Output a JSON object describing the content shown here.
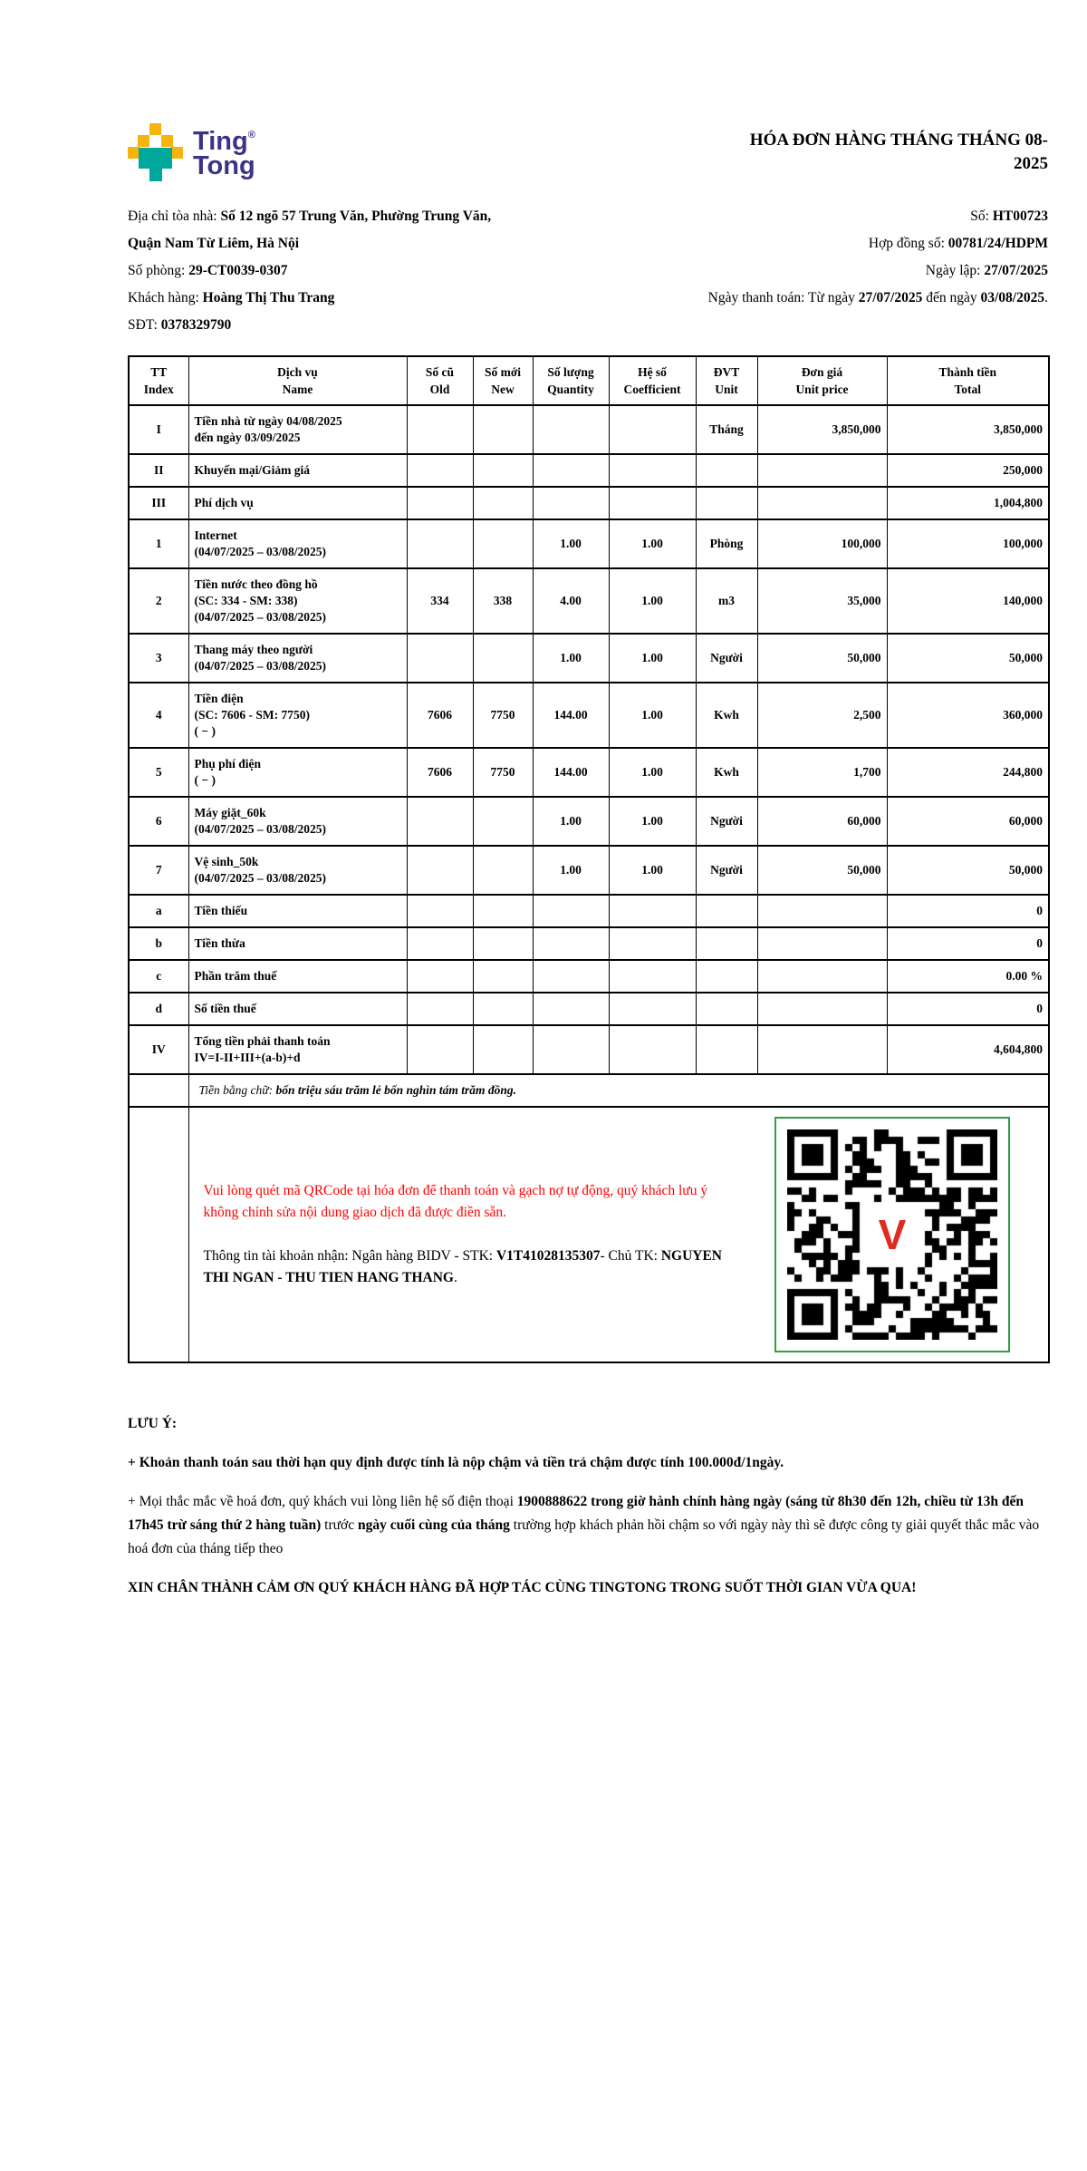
{
  "logo": {
    "line1": "Ting",
    "reg": "®",
    "line2": "Tong"
  },
  "header": {
    "title_l1": "HÓA ĐƠN HÀNG THÁNG THÁNG 08-",
    "title_l2": "2025"
  },
  "info": {
    "lines": [
      {
        "left": [
          {
            "t": "Địa chỉ tòa nhà: "
          },
          {
            "t": "Số 12 ngõ 57 Trung Văn, Phường Trung Văn,",
            "b": 1
          }
        ],
        "right": [
          {
            "t": "Số: "
          },
          {
            "t": "HT00723",
            "b": 1
          }
        ]
      },
      {
        "left": [
          {
            "t": "Quận Nam Từ Liêm, Hà Nội",
            "b": 1
          }
        ],
        "right": [
          {
            "t": "Hợp đồng số: "
          },
          {
            "t": "00781/24/HDPM",
            "b": 1
          }
        ]
      },
      {
        "left": [
          {
            "t": "Số phòng: "
          },
          {
            "t": "29-CT0039-0307",
            "b": 1
          }
        ],
        "right": [
          {
            "t": "Ngày lập: "
          },
          {
            "t": "27/07/2025",
            "b": 1
          }
        ]
      },
      {
        "left": [
          {
            "t": "Khách hàng: "
          },
          {
            "t": "Hoàng Thị Thu Trang",
            "b": 1
          }
        ],
        "right": [
          {
            "t": "Ngày thanh toán: Từ ngày "
          },
          {
            "t": "27/07/2025",
            "b": 1
          },
          {
            "t": " đến ngày "
          },
          {
            "t": "03/08/2025",
            "b": 1
          },
          {
            "t": "."
          }
        ]
      },
      {
        "left": [
          {
            "t": "SĐT: "
          },
          {
            "t": "0378329790",
            "b": 1
          }
        ],
        "right": []
      }
    ]
  },
  "table": {
    "columns": [
      {
        "l1": "TT",
        "l2": "Index"
      },
      {
        "l1": "Dịch vụ",
        "l2": "Name"
      },
      {
        "l1": "Số cũ",
        "l2": "Old"
      },
      {
        "l1": "Số mới",
        "l2": "New"
      },
      {
        "l1": "Số lượng",
        "l2": "Quantity"
      },
      {
        "l1": "Hệ số",
        "l2": "Coefficient"
      },
      {
        "l1": "ĐVT",
        "l2": "Unit"
      },
      {
        "l1": "Đơn giá",
        "l2": "Unit price"
      },
      {
        "l1": "Thành tiền",
        "l2": "Total"
      }
    ],
    "rows": [
      {
        "tt": "I",
        "name": [
          "Tiền nhà từ ngày 04/08/2025",
          "đến ngày 03/09/2025"
        ],
        "old": "",
        "new": "",
        "qty": "",
        "coef": "",
        "unit": "Tháng",
        "price": "3,850,000",
        "total": "3,850,000"
      },
      {
        "tt": "II",
        "name": [
          "Khuyến mại/Giảm giá"
        ],
        "old": "",
        "new": "",
        "qty": "",
        "coef": "",
        "unit": "",
        "price": "",
        "total": "250,000"
      },
      {
        "tt": "III",
        "name": [
          "Phí dịch vụ"
        ],
        "old": "",
        "new": "",
        "qty": "",
        "coef": "",
        "unit": "",
        "price": "",
        "total": "1,004,800"
      },
      {
        "tt": "1",
        "name": [
          "Internet",
          "(04/07/2025 – 03/08/2025)"
        ],
        "old": "",
        "new": "",
        "qty": "1.00",
        "coef": "1.00",
        "unit": "Phòng",
        "price": "100,000",
        "total": "100,000"
      },
      {
        "tt": "2",
        "name": [
          "Tiền nước theo đồng hồ",
          "(SC: 334 - SM: 338)",
          "(04/07/2025 – 03/08/2025)"
        ],
        "old": "334",
        "new": "338",
        "qty": "4.00",
        "coef": "1.00",
        "unit": "m3",
        "price": "35,000",
        "total": "140,000"
      },
      {
        "tt": "3",
        "name": [
          "Thang máy theo người",
          "(04/07/2025 – 03/08/2025)"
        ],
        "old": "",
        "new": "",
        "qty": "1.00",
        "coef": "1.00",
        "unit": "Người",
        "price": "50,000",
        "total": "50,000"
      },
      {
        "tt": "4",
        "name": [
          "Tiền điện",
          "(SC: 7606 - SM: 7750)",
          "( − )"
        ],
        "old": "7606",
        "new": "7750",
        "qty": "144.00",
        "coef": "1.00",
        "unit": "Kwh",
        "price": "2,500",
        "total": "360,000"
      },
      {
        "tt": "5",
        "name": [
          "Phụ phí điện",
          "( − )"
        ],
        "old": "7606",
        "new": "7750",
        "qty": "144.00",
        "coef": "1.00",
        "unit": "Kwh",
        "price": "1,700",
        "total": "244,800"
      },
      {
        "tt": "6",
        "name": [
          "Máy giặt_60k",
          "(04/07/2025 – 03/08/2025)"
        ],
        "old": "",
        "new": "",
        "qty": "1.00",
        "coef": "1.00",
        "unit": "Người",
        "price": "60,000",
        "total": "60,000"
      },
      {
        "tt": "7",
        "name": [
          "Vệ sinh_50k",
          "(04/07/2025 – 03/08/2025)"
        ],
        "old": "",
        "new": "",
        "qty": "1.00",
        "coef": "1.00",
        "unit": "Người",
        "price": "50,000",
        "total": "50,000"
      },
      {
        "tt": "a",
        "name": [
          "Tiền thiếu"
        ],
        "old": "",
        "new": "",
        "qty": "",
        "coef": "",
        "unit": "",
        "price": "",
        "total": "0"
      },
      {
        "tt": "b",
        "name": [
          "Tiền thừa"
        ],
        "old": "",
        "new": "",
        "qty": "",
        "coef": "",
        "unit": "",
        "price": "",
        "total": "0"
      },
      {
        "tt": "c",
        "name": [
          "Phần trăm thuế"
        ],
        "old": "",
        "new": "",
        "qty": "",
        "coef": "",
        "unit": "",
        "price": "",
        "total": "0.00 %"
      },
      {
        "tt": "d",
        "name": [
          "Số tiền thuế"
        ],
        "old": "",
        "new": "",
        "qty": "",
        "coef": "",
        "unit": "",
        "price": "",
        "total": "0"
      },
      {
        "tt": "IV",
        "name": [
          "Tổng tiền phải thanh toán",
          "IV=I-II+III+(a-b)+d"
        ],
        "old": "",
        "new": "",
        "qty": "",
        "coef": "",
        "unit": "",
        "price": "",
        "total": "4,604,800"
      }
    ]
  },
  "amount_in_words": {
    "label": "Tiền bằng chữ: ",
    "value": "bốn triệu sáu trăm lẻ bốn nghìn tám trăm đồng."
  },
  "qr_section": {
    "note_red": "Vui lòng quét mã QRCode tại hóa đơn để thanh toán và gạch nợ tự động, quý khách lưu ý không chỉnh sửa nội dung giao dịch đã được điền sẵn.",
    "account_segments": [
      {
        "t": "Thông tin tài khoản nhận: Ngân hàng BIDV - STK: "
      },
      {
        "t": "V1T41028135307",
        "b": 1
      },
      {
        "t": "- Chủ TK: "
      },
      {
        "t": "NGUYEN THI NGAN - THU TIEN HANG THANG",
        "b": 1
      },
      {
        "t": "."
      }
    ],
    "logo_glyph": "V"
  },
  "notes": {
    "heading": "LƯU Ý:",
    "note1": "+ Khoản thanh toán sau thời hạn quy định được tính là nộp chậm và tiền trả chậm được tính 100.000đ/1ngày.",
    "note2_segments": [
      {
        "t": "+ Mọi thắc mắc về hoá đơn, quý khách vui lòng liên hệ số điện thoại "
      },
      {
        "t": "1900888622 trong giờ hành chính hàng ngày (sáng từ 8h30 đến 12h, chiều từ 13h đến 17h45 trừ sáng thứ 2 hàng tuần)",
        "b": 1
      },
      {
        "t": " trước "
      },
      {
        "t": "ngày cuối cùng của tháng",
        "b": 1
      },
      {
        "t": " trường hợp khách phản hồi chậm so với ngày này thì sẽ được công ty giải quyết thắc mắc vào hoá đơn của tháng tiếp theo"
      }
    ],
    "thanks": "XIN CHÂN THÀNH CẢM ƠN QUÝ KHÁCH HÀNG ĐÃ HỢP TÁC CÙNG TINGTONG TRONG SUỐT THỜI GIAN VỪA QUA!"
  },
  "colors": {
    "brand_navy": "#3B3486",
    "brand_yellow": "#F6B40E",
    "brand_teal": "#00A79B",
    "alert_red": "#FF0000",
    "qr_border_green": "#2F9E44"
  }
}
